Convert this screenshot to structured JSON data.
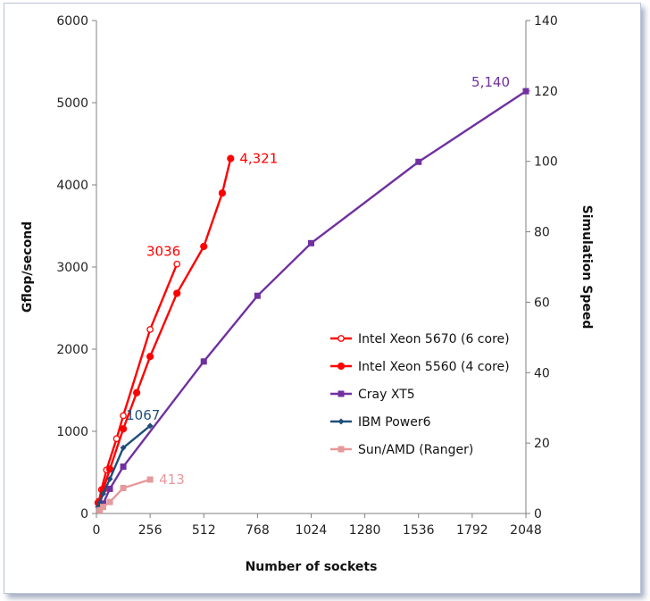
{
  "chart_data": {
    "type": "line",
    "xlabel": "Number of sockets",
    "ylabel": "Gflop/second",
    "y2label": "Simulation Speed",
    "xlim": [
      0,
      2048
    ],
    "ylim": [
      0,
      6000
    ],
    "y2lim": [
      0,
      140
    ],
    "x_ticks": [
      "0",
      "256",
      "512",
      "768",
      "1024",
      "1280",
      "1536",
      "1792",
      "2048"
    ],
    "x_tick_values": [
      0,
      256,
      512,
      768,
      1024,
      1280,
      1536,
      1792,
      2048
    ],
    "y_ticks": [
      "0",
      "1000",
      "2000",
      "3000",
      "4000",
      "5000",
      "6000"
    ],
    "y_tick_values": [
      0,
      1000,
      2000,
      3000,
      4000,
      5000,
      6000
    ],
    "y2_ticks": [
      "0",
      "20",
      "40",
      "60",
      "80",
      "100",
      "120",
      "140"
    ],
    "y2_tick_values": [
      0,
      20,
      40,
      60,
      80,
      100,
      120,
      140
    ],
    "grid": false,
    "legend_position": "center-right",
    "series": [
      {
        "name": "Intel Xeon 5670 (6 core)",
        "color": "#ff0000",
        "marker": "open-circle",
        "x": [
          12,
          24,
          48,
          96,
          128,
          256,
          384
        ],
        "y": [
          150,
          290,
          530,
          910,
          1190,
          2240,
          3036
        ]
      },
      {
        "name": "Intel Xeon 5560 (4 core)",
        "color": "#ff0000",
        "marker": "filled-circle",
        "x": [
          8,
          32,
          64,
          128,
          192,
          256,
          384,
          512,
          600,
          640
        ],
        "y": [
          130,
          290,
          540,
          1030,
          1470,
          1910,
          2680,
          3250,
          3900,
          4321
        ]
      },
      {
        "name": "Cray XT5",
        "color": "#7030a0",
        "marker": "square",
        "x": [
          32,
          64,
          128,
          512,
          768,
          1024,
          1536,
          2048
        ],
        "y": [
          120,
          300,
          570,
          1850,
          2650,
          3290,
          4280,
          5140
        ]
      },
      {
        "name": "IBM Power6",
        "color": "#1f4e79",
        "marker": "diamond",
        "x": [
          8,
          16,
          32,
          64,
          128,
          256
        ],
        "y": [
          80,
          130,
          240,
          420,
          800,
          1067
        ]
      },
      {
        "name": "Sun/AMD (Ranger)",
        "color": "#e6999b",
        "marker": "square",
        "x": [
          16,
          32,
          64,
          128,
          256
        ],
        "y": [
          40,
          80,
          140,
          310,
          413
        ]
      }
    ],
    "annotations": [
      {
        "text": "5,140",
        "color": "#7030a0",
        "x": 2048,
        "y": 5140
      },
      {
        "text": "4,321",
        "color": "#ff0000",
        "x": 640,
        "y": 4321
      },
      {
        "text": "3036",
        "color": "#ff0000",
        "x": 384,
        "y": 3036
      },
      {
        "text": "1067",
        "color": "#1f4e79",
        "x": 256,
        "y": 1067
      },
      {
        "text": "413",
        "color": "#e6999b",
        "x": 256,
        "y": 413
      }
    ]
  }
}
